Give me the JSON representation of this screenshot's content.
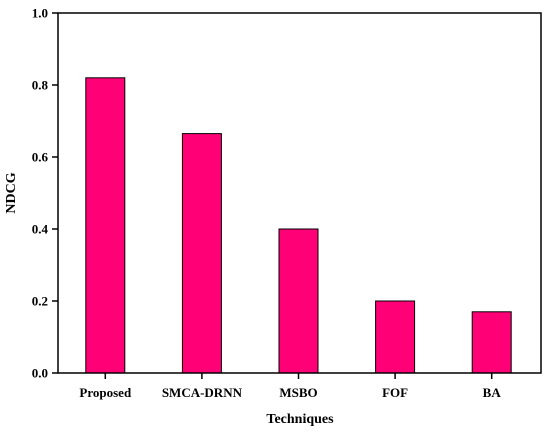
{
  "chart_data": {
    "type": "bar",
    "categories": [
      "Proposed",
      "SMCA-DRNN",
      "MSBO",
      "FOF",
      "BA"
    ],
    "values": [
      0.82,
      0.665,
      0.4,
      0.2,
      0.17
    ],
    "xlabel": "Techniques",
    "ylabel": "NDCG",
    "ylim": [
      0.0,
      1.0
    ],
    "yticks": [
      "0.0",
      "0.2",
      "0.4",
      "0.6",
      "0.8",
      "1.0"
    ],
    "bar_color": "#ff0077",
    "grid": false,
    "legend": "none"
  }
}
